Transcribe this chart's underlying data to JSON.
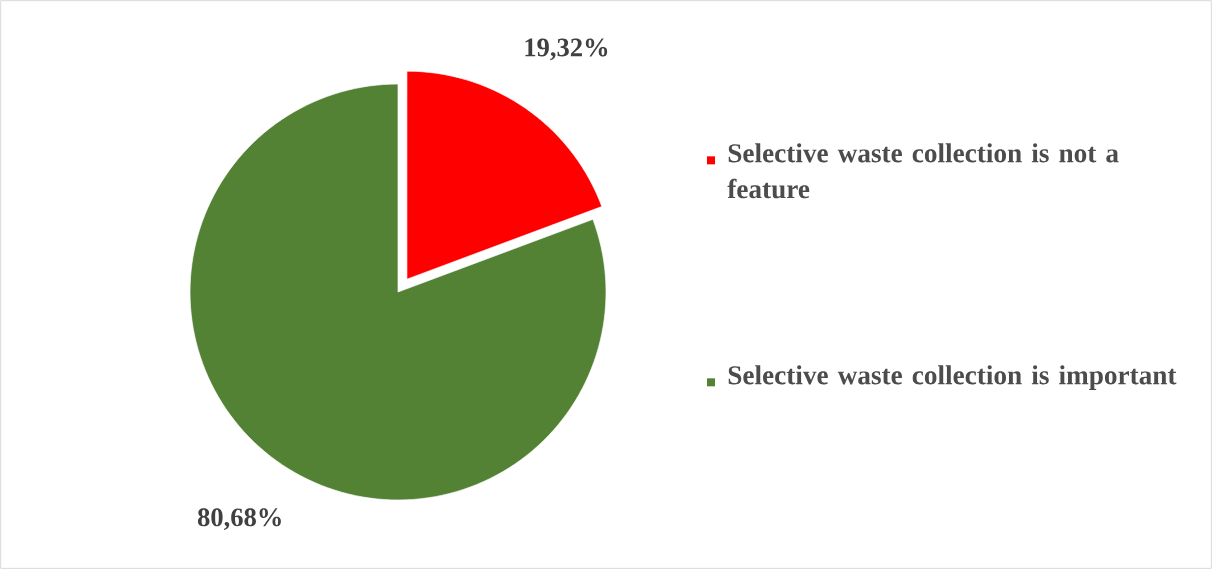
{
  "chart_data": {
    "type": "pie",
    "categories": [
      "Selective waste collection is not a feature",
      "Selective waste collection is important"
    ],
    "values": [
      19.32,
      80.68
    ],
    "colors": [
      "#ff0000",
      "#548235"
    ],
    "value_labels": [
      "19,32%",
      "80,68%"
    ],
    "legend": "right"
  }
}
